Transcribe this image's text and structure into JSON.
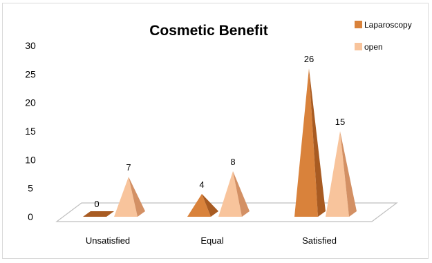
{
  "chart_data": {
    "type": "bar",
    "subtype": "3d-pyramid",
    "title": "Cosmetic Benefit",
    "categories": [
      "Unsatisfied",
      "Equal",
      "Satisfied"
    ],
    "series": [
      {
        "name": "Laparoscopy",
        "values": [
          0,
          4,
          26
        ],
        "color": "#d9823b",
        "color_dark": "#a85b22"
      },
      {
        "name": "open",
        "values": [
          7,
          8,
          15
        ],
        "color": "#f8c49c",
        "color_dark": "#d39064"
      }
    ],
    "ylim": [
      0,
      30
    ],
    "yticks": [
      0,
      5,
      10,
      15,
      20,
      25,
      30
    ],
    "grid": false,
    "legend_position": "top-right",
    "data_labels": true,
    "floor_color": "#ffffff",
    "floor_edge_color": "#bfbfbf"
  }
}
